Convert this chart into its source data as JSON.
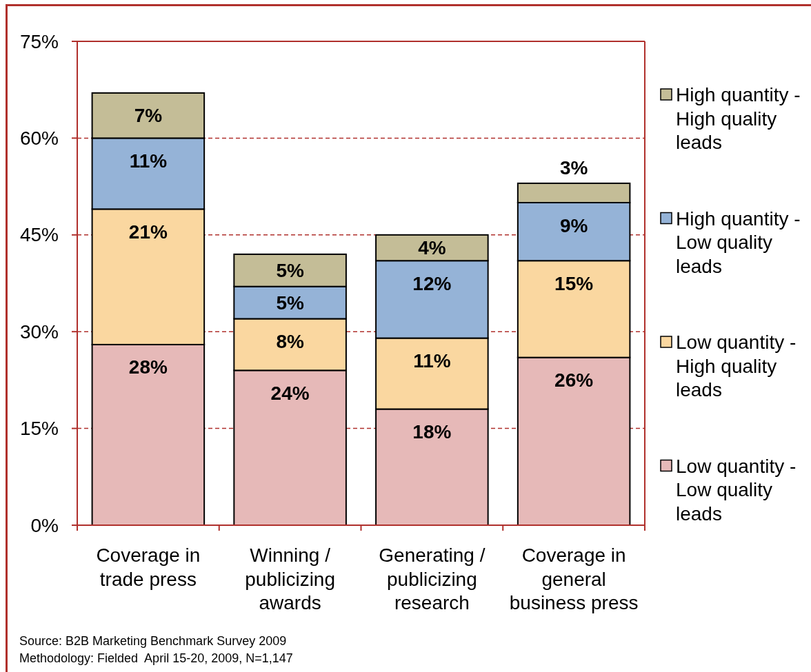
{
  "chart_data": {
    "type": "bar",
    "stacked": true,
    "categories": [
      "Coverage in trade press",
      "Winning / publicizing awards",
      "Generating / publicizing research",
      "Coverage in general business press"
    ],
    "series": [
      {
        "name": "Low quantity - Low quality leads",
        "color": "#e6b9b8",
        "values": [
          28,
          24,
          18,
          26
        ],
        "value_labels": [
          "28%",
          "24%",
          "18%",
          "26%"
        ]
      },
      {
        "name": "Low quantity - High quality leads",
        "color": "#fad7a0",
        "values": [
          21,
          8,
          11,
          15
        ],
        "value_labels": [
          "21%",
          "8%",
          "11%",
          "15%"
        ]
      },
      {
        "name": "High quantity - Low quality leads",
        "color": "#95b3d7",
        "values": [
          11,
          5,
          12,
          9
        ],
        "value_labels": [
          "11%",
          "5%",
          "12%",
          "9%"
        ]
      },
      {
        "name": "High quantity - High quality leads",
        "color": "#c4bd97",
        "values": [
          7,
          5,
          4,
          3
        ],
        "value_labels": [
          "7%",
          "5%",
          "4%",
          "3%"
        ]
      }
    ],
    "ylim": [
      0,
      75
    ],
    "yticks": [
      {
        "value": 0,
        "label": "0%"
      },
      {
        "value": 15,
        "label": "15%"
      },
      {
        "value": 30,
        "label": "30%"
      },
      {
        "value": 45,
        "label": "45%"
      },
      {
        "value": 60,
        "label": "60%"
      },
      {
        "value": 75,
        "label": "75%"
      }
    ],
    "grid": "y",
    "legend": "right",
    "annotations": [
      "Source: B2B Marketing Benchmark Survey 2009",
      "Methodology: Fielded  April 15-20, 2009, N=1,147"
    ]
  }
}
